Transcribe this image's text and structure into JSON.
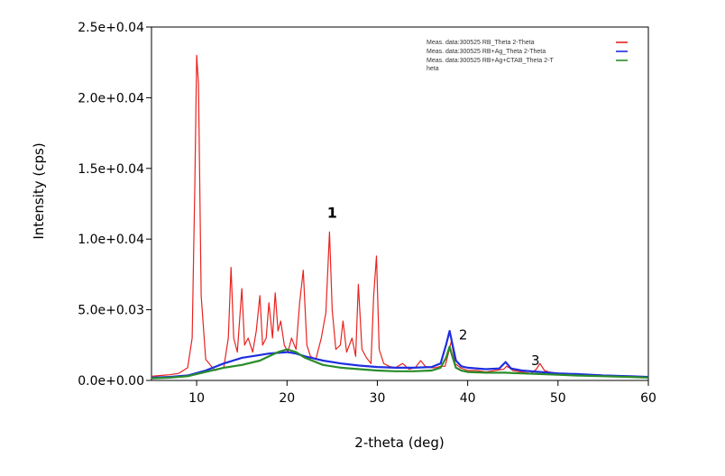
{
  "chart_data": {
    "type": "line",
    "title": "",
    "xlabel": "2-theta (deg)",
    "ylabel": "Intensity (cps)",
    "xlim": [
      5,
      60
    ],
    "ylim": [
      0,
      25000
    ],
    "xticks": [
      10,
      20,
      30,
      40,
      50,
      60
    ],
    "xtick_labels": [
      "10",
      "20",
      "30",
      "40",
      "50",
      "60"
    ],
    "yticks": [
      0,
      5000,
      10000,
      15000,
      20000,
      25000
    ],
    "ytick_labels": [
      "0.0e+0.00",
      "5.0e+0.03",
      "1.0e+0.04",
      "1.5e+0.04",
      "2.0e+0.04",
      "2.5e+0.04"
    ],
    "grid": false,
    "legend_position": "top-right",
    "series": [
      {
        "name": "Meas. data:300525 RB_Theta 2-Theta",
        "color": "#e8231f",
        "x": [
          5,
          6,
          7,
          8,
          9,
          9.5,
          9.8,
          10.0,
          10.2,
          10.5,
          11,
          12,
          13,
          13.5,
          13.8,
          14.1,
          14.5,
          15.0,
          15.3,
          15.7,
          16.2,
          16.6,
          17.0,
          17.3,
          17.7,
          18.0,
          18.4,
          18.7,
          19.0,
          19.3,
          19.7,
          20.1,
          20.5,
          21.0,
          21.4,
          21.8,
          22.2,
          22.6,
          23.2,
          23.8,
          24.3,
          24.7,
          25.0,
          25.4,
          25.9,
          26.2,
          26.6,
          27.2,
          27.6,
          27.9,
          28.3,
          28.8,
          29.3,
          29.6,
          29.9,
          30.2,
          30.7,
          31.3,
          32.0,
          32.8,
          33.5,
          34.2,
          34.8,
          35.3,
          35.8,
          36.4,
          37.0,
          37.5,
          37.9,
          38.2,
          38.6,
          39.2,
          40,
          41,
          42,
          43,
          44,
          44.3,
          44.6,
          45,
          46,
          47,
          47.6,
          48,
          48.5,
          49,
          50,
          52,
          54,
          56,
          58,
          60
        ],
        "y": [
          300,
          350,
          400,
          500,
          900,
          3000,
          14000,
          23000,
          21000,
          6000,
          1500,
          700,
          900,
          3000,
          8000,
          3000,
          2000,
          6500,
          2500,
          3000,
          2000,
          3500,
          6000,
          2500,
          3000,
          5500,
          3000,
          6200,
          3500,
          4200,
          2500,
          2000,
          3000,
          2200,
          5500,
          7800,
          2500,
          1700,
          1500,
          3000,
          4800,
          10500,
          5000,
          2200,
          2500,
          4200,
          2000,
          3000,
          1700,
          6800,
          2200,
          1600,
          1200,
          6000,
          8800,
          2200,
          1200,
          1000,
          900,
          1200,
          800,
          900,
          1400,
          1000,
          900,
          900,
          1000,
          1000,
          2000,
          2800,
          1200,
          900,
          700,
          700,
          600,
          700,
          800,
          1000,
          900,
          700,
          600,
          500,
          800,
          1200,
          700,
          600,
          500,
          450,
          400,
          350,
          300,
          250
        ]
      },
      {
        "name": "Meas. data:300525 RB+Ag_Theta 2-Theta",
        "color": "#1f2ee0",
        "x": [
          5,
          7,
          9,
          11,
          13,
          15,
          17,
          18,
          19,
          20,
          21,
          22,
          24,
          26,
          28,
          30,
          32,
          34,
          36,
          37,
          37.6,
          38.0,
          38.3,
          38.7,
          39.3,
          40,
          42,
          43.5,
          44.2,
          44.8,
          46,
          48,
          50,
          52,
          55,
          58,
          60
        ],
        "y": [
          200,
          250,
          350,
          700,
          1200,
          1600,
          1800,
          1900,
          1950,
          2000,
          1900,
          1700,
          1400,
          1200,
          1050,
          950,
          900,
          900,
          950,
          1200,
          2500,
          3500,
          2600,
          1400,
          1000,
          900,
          800,
          850,
          1300,
          850,
          700,
          600,
          500,
          450,
          350,
          300,
          250
        ]
      },
      {
        "name": "Meas. data:300525 RB+Ag+CTAB_Theta 2-Theta",
        "color": "#2a8c2a",
        "x": [
          5,
          7,
          9,
          11,
          13,
          15,
          17,
          18,
          19,
          20,
          21,
          22,
          24,
          26,
          28,
          30,
          32,
          34,
          36,
          37,
          37.6,
          38.0,
          38.3,
          38.7,
          39.3,
          40,
          42,
          44,
          46,
          48,
          50,
          52,
          55,
          58,
          60
        ],
        "y": [
          150,
          200,
          300,
          600,
          900,
          1100,
          1400,
          1700,
          2000,
          2200,
          2000,
          1600,
          1100,
          900,
          800,
          700,
          650,
          650,
          700,
          900,
          1600,
          2400,
          1700,
          900,
          700,
          600,
          550,
          550,
          500,
          450,
          400,
          350,
          300,
          250,
          200
        ]
      }
    ],
    "annotations": [
      {
        "text": "1",
        "x": 25,
        "y": 11500,
        "bold": true
      },
      {
        "text": "2",
        "x": 39.5,
        "y": 2900,
        "bold": false
      },
      {
        "text": "3",
        "x": 47.5,
        "y": 1100,
        "bold": false
      }
    ]
  },
  "legend": {
    "entries": [
      {
        "label": "Meas. data:300525 RB_Theta 2-Theta",
        "color": "#e8231f"
      },
      {
        "label": "Meas. data:300525 RB+Ag_Theta 2-Theta",
        "color": "#1f2ee0"
      },
      {
        "label": "Meas. data:300525 RB+Ag+CTAB_Theta 2-T",
        "color": "#2a8c2a",
        "wrap": "heta"
      }
    ]
  }
}
